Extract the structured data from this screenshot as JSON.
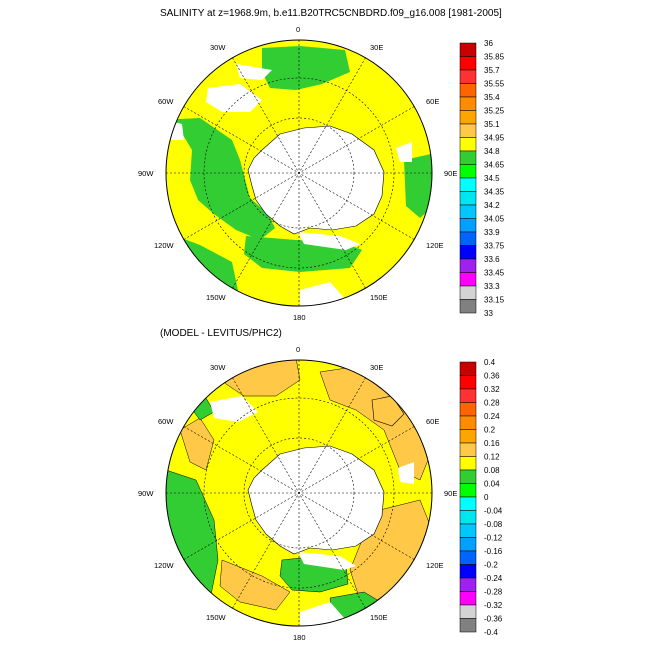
{
  "figure": {
    "top_title": "SALINITY at z=1968.9m, b.e11.B20TRC5CNBDRD.f09_g16.008 [1981-2005]",
    "bottom_title": "(MODEL - LEVITUS/PHC2)"
  },
  "chart_data": [
    {
      "type": "heatmap",
      "projection": "south-polar-stereographic",
      "title": "SALINITY at z=1968.9m, b.e11.B20TRC5CNBDRD.f09_g16.008 [1981-2005]",
      "longitude_labels": [
        "0",
        "30E",
        "60E",
        "90E",
        "120E",
        "150E",
        "180",
        "150W",
        "120W",
        "90W",
        "60W",
        "30W"
      ],
      "colorbar": {
        "levels": [
          "36",
          "35.85",
          "35.7",
          "35.55",
          "35.4",
          "35.25",
          "35.1",
          "34.95",
          "34.8",
          "34.65",
          "34.5",
          "34.35",
          "34.2",
          "34.05",
          "33.9",
          "33.75",
          "33.6",
          "33.45",
          "33.3",
          "33.15",
          "33"
        ],
        "colors": [
          "#c80000",
          "#ff0000",
          "#ff3232",
          "#ff6400",
          "#ff8c00",
          "#ffa500",
          "#ffc846",
          "#ffff00",
          "#32cd32",
          "#00ff00",
          "#00ffff",
          "#00e6f0",
          "#00c8ff",
          "#00a0ff",
          "#0064ff",
          "#0000ff",
          "#a020f0",
          "#ff00ff",
          "#d3d3d3",
          "#808080"
        ]
      },
      "regions": [
        {
          "label": "34.8-34.95",
          "color": "#ffff00"
        },
        {
          "label": "34.65-34.8",
          "color": "#32cd32"
        },
        {
          "label": "land/missing",
          "color": "#ffffff"
        }
      ]
    },
    {
      "type": "heatmap",
      "projection": "south-polar-stereographic",
      "title": "(MODEL - LEVITUS/PHC2)",
      "longitude_labels": [
        "0",
        "30E",
        "60E",
        "90E",
        "120E",
        "150E",
        "180",
        "150W",
        "120W",
        "90W",
        "60W",
        "30W"
      ],
      "colorbar": {
        "levels": [
          "0.4",
          "0.36",
          "0.32",
          "0.28",
          "0.24",
          "0.2",
          "0.16",
          "0.12",
          "0.08",
          "0.04",
          "0",
          "-0.04",
          "-0.08",
          "-0.12",
          "-0.16",
          "-0.2",
          "-0.24",
          "-0.28",
          "-0.32",
          "-0.36",
          "-0.4"
        ],
        "colors": [
          "#c80000",
          "#ff0000",
          "#ff3232",
          "#ff6400",
          "#ff8c00",
          "#ffa500",
          "#ffc846",
          "#ffff00",
          "#32cd32",
          "#00ff00",
          "#00ffff",
          "#00e6f0",
          "#00c8ff",
          "#00a0ff",
          "#0064ff",
          "#0000ff",
          "#a020f0",
          "#ff00ff",
          "#d3d3d3",
          "#808080"
        ]
      },
      "regions": [
        {
          "label": "0.08-0.12",
          "color": "#ffff00"
        },
        {
          "label": "0.12-0.16",
          "color": "#ffc846"
        },
        {
          "label": "0.04-0.08",
          "color": "#32cd32"
        },
        {
          "label": "land/missing",
          "color": "#ffffff"
        }
      ]
    }
  ]
}
